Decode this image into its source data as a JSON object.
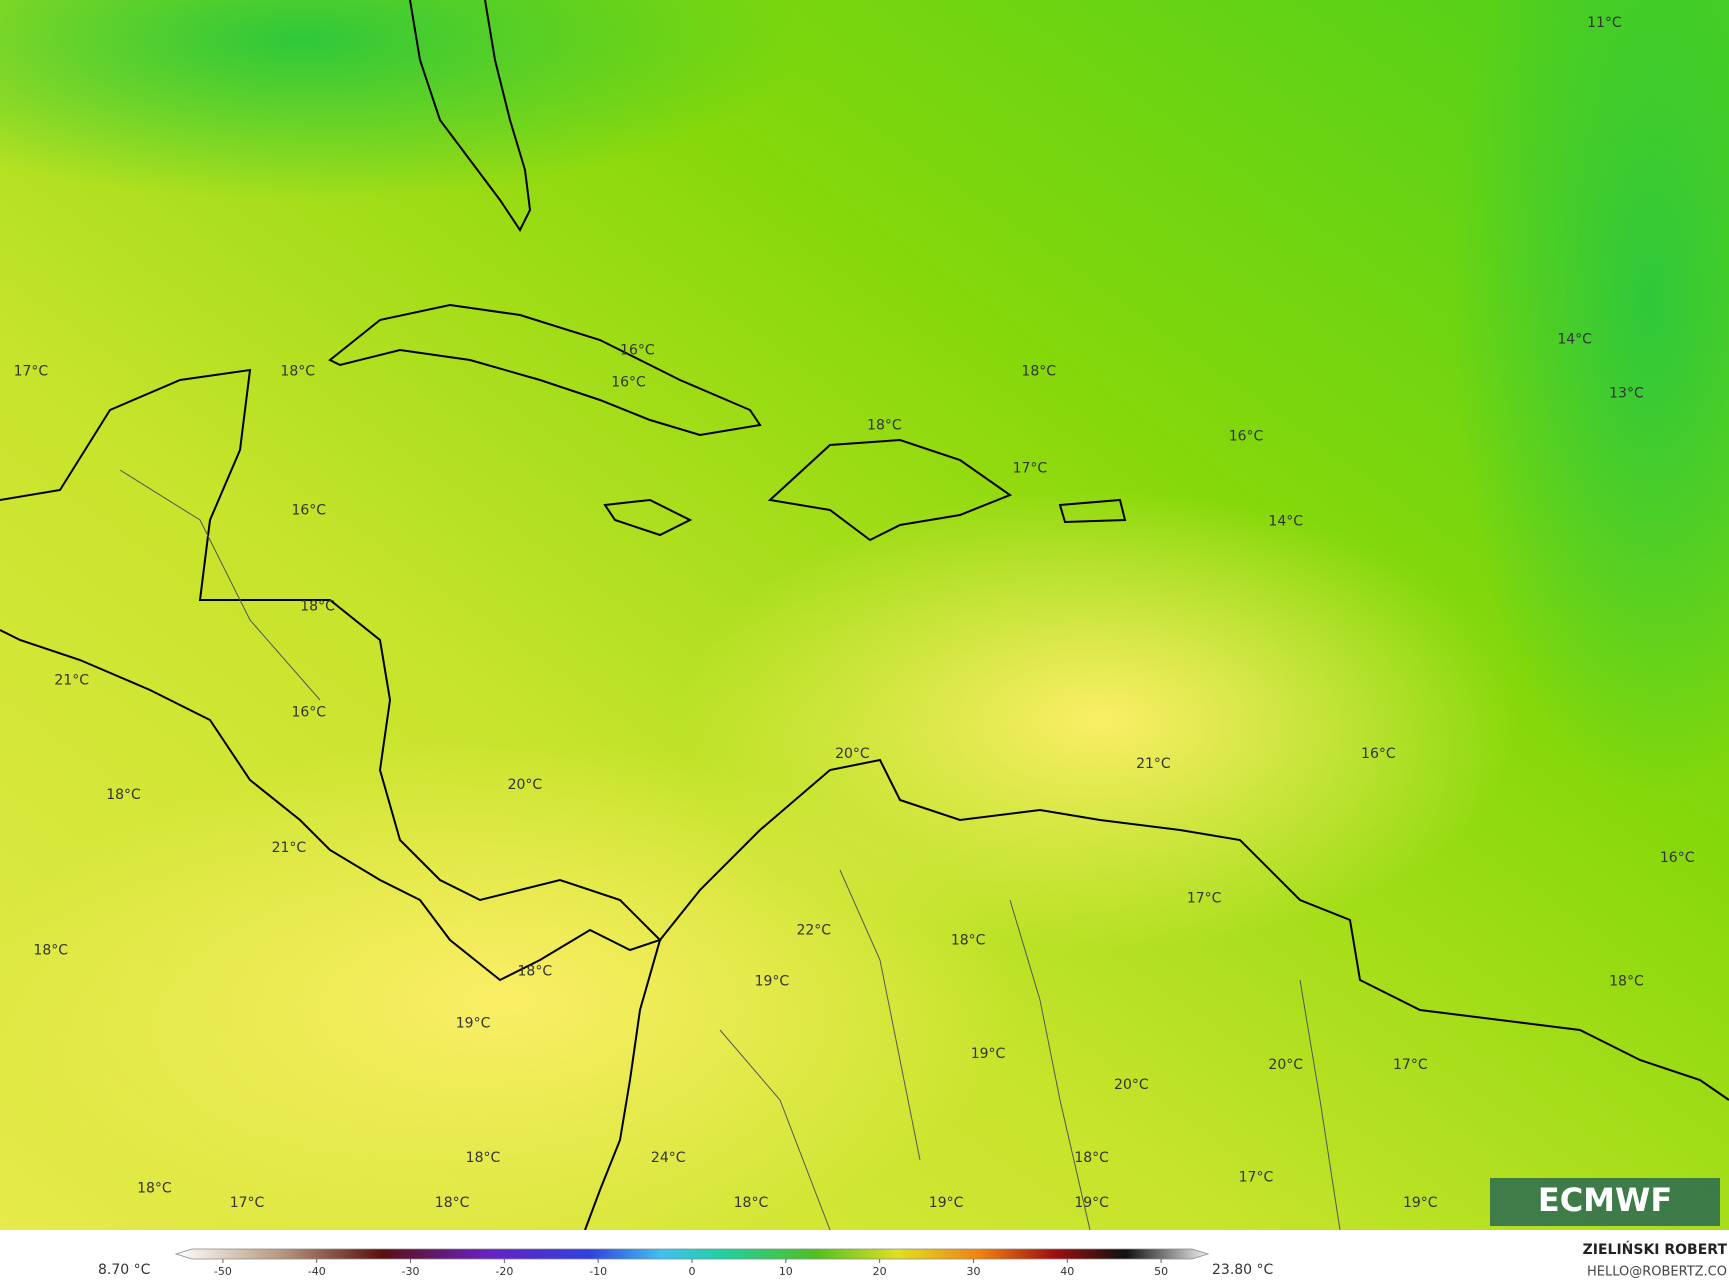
{
  "map": {
    "temperature_labels": [
      "11°C",
      "17°C",
      "18°C",
      "16°C",
      "16°C",
      "18°C",
      "14°C",
      "13°C",
      "18°C",
      "16°C",
      "17°C",
      "16°C",
      "14°C",
      "18°C",
      "21°C",
      "16°C",
      "20°C",
      "21°C",
      "16°C",
      "18°C",
      "20°C",
      "21°C",
      "16°C",
      "17°C",
      "22°C",
      "18°C",
      "18°C",
      "18°C",
      "19°C",
      "18°C",
      "19°C",
      "19°C",
      "20°C",
      "17°C",
      "20°C",
      "18°C",
      "24°C",
      "18°C",
      "18°C",
      "17°C",
      "17°C",
      "18°C",
      "18°C",
      "19°C",
      "19°C",
      "19°C"
    ],
    "logo": "ECMWF"
  },
  "colorbar": {
    "min_label": "8.70 °C",
    "max_label": "23.80 °C",
    "lim": [
      -55,
      55
    ],
    "ticks": [
      -50,
      -40,
      -30,
      -20,
      -10,
      0,
      10,
      20,
      30,
      40,
      50
    ]
  },
  "credits": {
    "author": "ZIELIŃSKI ROBERT",
    "email": "HELLO@ROBERTZ.CO"
  }
}
